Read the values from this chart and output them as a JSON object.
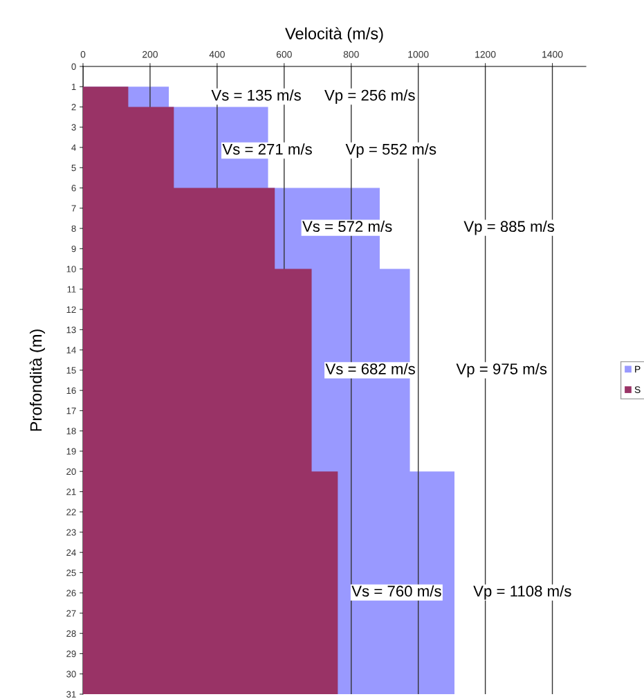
{
  "chart_data": {
    "type": "area",
    "orientation": "horizontal",
    "xlabel": "Velocità (m/s)",
    "ylabel": "Profondità (m)",
    "series": [
      {
        "name": "P",
        "color": "#9999ff",
        "x": [
          1,
          2,
          6,
          10,
          20,
          31
        ],
        "values": [
          256,
          552,
          885,
          975,
          1108,
          1108
        ]
      },
      {
        "name": "S",
        "color": "#993366",
        "x": [
          1,
          2,
          6,
          10,
          20,
          31
        ],
        "values": [
          135,
          271,
          572,
          682,
          760,
          760
        ]
      }
    ],
    "xlim": [
      0,
      1500
    ],
    "xticks": [
      0,
      200,
      400,
      600,
      800,
      1000,
      1200,
      1400
    ],
    "ylim": [
      31,
      0
    ],
    "yticks": [
      0,
      1,
      2,
      3,
      4,
      5,
      6,
      7,
      8,
      9,
      10,
      11,
      12,
      13,
      14,
      15,
      16,
      17,
      18,
      19,
      20,
      21,
      22,
      23,
      24,
      25,
      26,
      27,
      28,
      29,
      30,
      31
    ],
    "grid": "x",
    "legend": "right",
    "annotations": [
      "Vs = 135 m/s",
      "Vp = 256 m/s",
      "Vs = 271 m/s",
      "Vp = 552 m/s",
      "Vs = 572 m/s",
      "Vp = 885 m/s",
      "Vs = 682 m/s",
      "Vp = 975 m/s",
      "Vs = 760 m/s",
      "Vp = 1108 m/s"
    ]
  }
}
